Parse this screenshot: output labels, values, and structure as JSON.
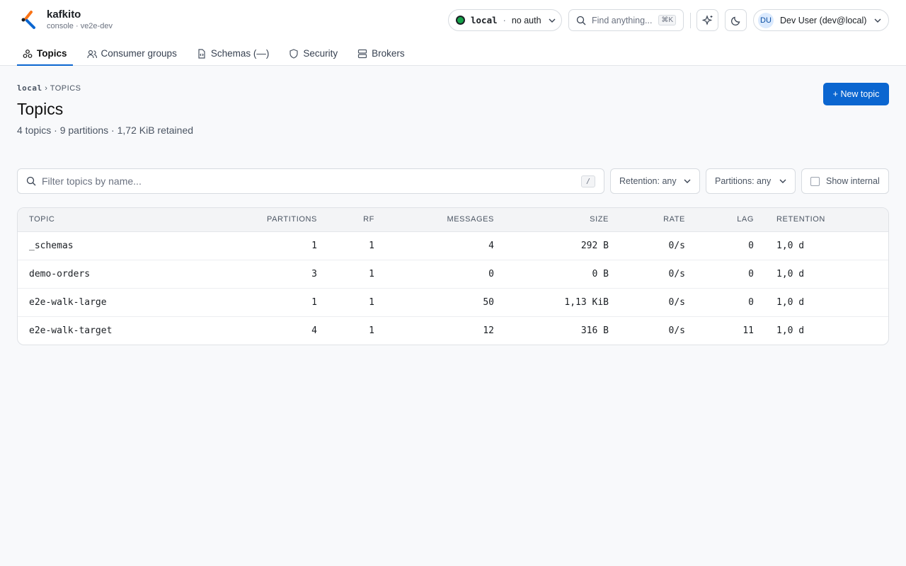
{
  "header": {
    "brand": "kafkito",
    "subtitle": "console · ve2e-dev",
    "cluster": "local",
    "separator": "·",
    "auth": "no auth",
    "search_placeholder": "Find anything...",
    "search_shortcut": "⌘K",
    "user_initials": "DU",
    "user_name": "Dev User (dev@local)"
  },
  "nav": [
    "Topics",
    "Consumer groups",
    "Schemas (—)",
    "Security",
    "Brokers"
  ],
  "breadcrumb": {
    "cluster": "local",
    "separator": "›",
    "section": "TOPICS"
  },
  "page": {
    "title": "Topics",
    "summary": "4 topics · 9 partitions · 1,72 KiB retained",
    "new_button": "+ New topic"
  },
  "filters": {
    "placeholder": "Filter topics by name...",
    "shortcut": "/",
    "retention": "Retention: any",
    "partitions": "Partitions: any",
    "show_internal": "Show internal"
  },
  "table": {
    "columns": [
      "TOPIC",
      "PARTITIONS",
      "RF",
      "MESSAGES",
      "SIZE",
      "RATE",
      "LAG",
      "RETENTION"
    ],
    "rows": [
      [
        "_schemas",
        1,
        1,
        4,
        "292 B",
        "0/s",
        0,
        "1,0 d"
      ],
      [
        "demo-orders",
        3,
        1,
        0,
        "0 B",
        "0/s",
        0,
        "1,0 d"
      ],
      [
        "e2e-walk-large",
        1,
        1,
        50,
        "1,13 KiB",
        "0/s",
        0,
        "1,0 d"
      ],
      [
        "e2e-walk-target",
        4,
        1,
        12,
        "316 B",
        "0/s",
        11,
        "1,0 d"
      ]
    ]
  }
}
